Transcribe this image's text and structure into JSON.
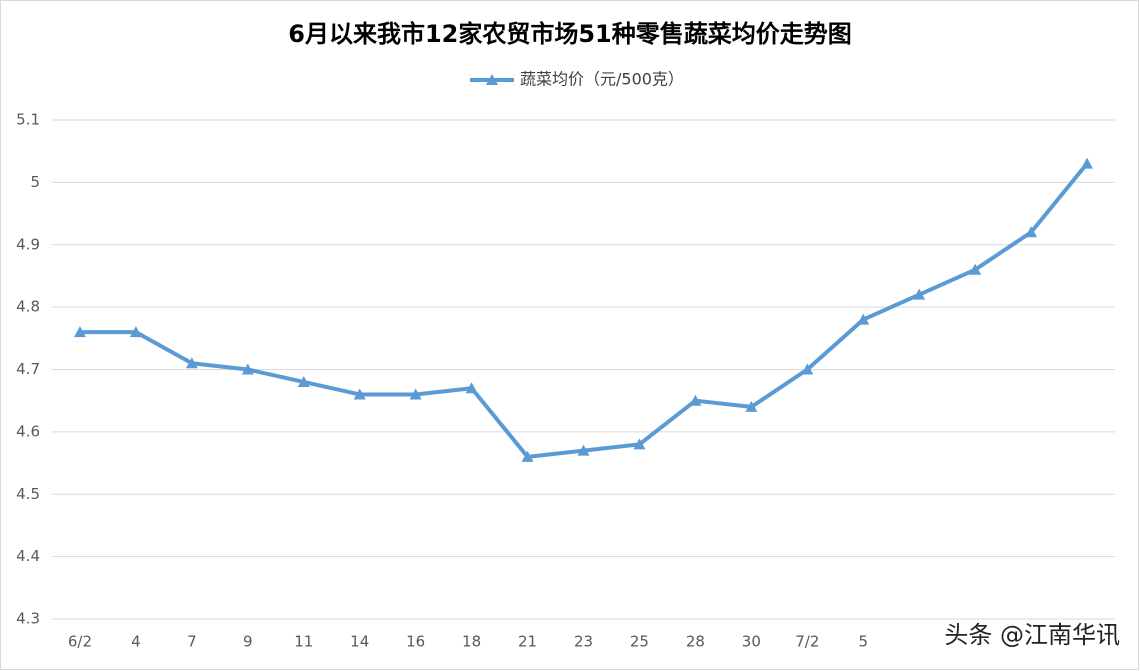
{
  "chart_data": {
    "type": "line",
    "title": "6月以来我市12家农贸市场51种零售蔬菜均价走势图",
    "categories": [
      "6/2",
      "4",
      "7",
      "9",
      "11",
      "14",
      "16",
      "18",
      "21",
      "23",
      "25",
      "28",
      "30",
      "7/2",
      "5",
      null,
      null,
      null,
      null
    ],
    "series": [
      {
        "name": "蔬菜均价（元/500克）",
        "color": "#5b9bd5",
        "values": [
          4.76,
          4.76,
          4.71,
          4.7,
          4.68,
          4.66,
          4.66,
          4.67,
          4.56,
          4.57,
          4.58,
          4.65,
          4.64,
          4.7,
          4.78,
          4.82,
          4.86,
          4.92,
          5.03
        ]
      }
    ],
    "ylim": [
      4.3,
      5.1
    ],
    "yticks": [
      4.3,
      4.4,
      4.5,
      4.6,
      4.7,
      4.8,
      4.9,
      5,
      5.1
    ],
    "grid": true,
    "legend": "top",
    "watermark": "头条 @江南华讯"
  }
}
